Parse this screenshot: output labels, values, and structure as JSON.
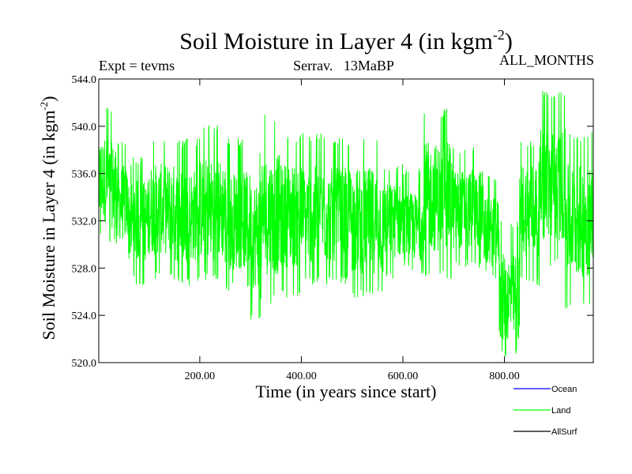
{
  "chart_data": {
    "type": "line",
    "title": "Soil Moisture in Layer 4 (in kgm",
    "title_sup": "-2",
    "title_close": ")",
    "subtitle_left": "Expt = tevms",
    "subtitle_center": "Serrav.   13MaBP",
    "subtitle_right": "ALL_MONTHS",
    "ylabel": "Soil Moisture in Layer 4 (in kgm",
    "ylabel_sup": "-2",
    "ylabel_close": ")",
    "xlabel": "Time (in years since start)",
    "xlim": [
      1,
      975
    ],
    "ylim": [
      520.0,
      544.0
    ],
    "x_ticks": [
      200,
      400,
      600,
      800
    ],
    "x_tick_labels": [
      "200.00",
      "400.00",
      "600.00",
      "800.00"
    ],
    "y_ticks": [
      520,
      524,
      528,
      532,
      536,
      540,
      544
    ],
    "y_tick_labels": [
      "520.0",
      "524.0",
      "528.0",
      "532.0",
      "536.0",
      "540.0",
      "544.0"
    ],
    "series": [
      {
        "name": "Ocean",
        "color": "#0000ff",
        "values": []
      },
      {
        "name": "Land",
        "color": "#00ff00",
        "segments": [
          {
            "x": [
              0,
              20
            ],
            "low": 530.5,
            "high": 542.0,
            "mean": 535.5
          },
          {
            "x": [
              20,
              40
            ],
            "low": 530.0,
            "high": 541.5,
            "mean": 535.0
          },
          {
            "x": [
              40,
              60
            ],
            "low": 529.0,
            "high": 539.0,
            "mean": 533.5
          },
          {
            "x": [
              60,
              100
            ],
            "low": 526.5,
            "high": 537.5,
            "mean": 532.0
          },
          {
            "x": [
              100,
              150
            ],
            "low": 527.0,
            "high": 539.0,
            "mean": 533.0
          },
          {
            "x": [
              150,
              200
            ],
            "low": 526.5,
            "high": 539.0,
            "mean": 532.5
          },
          {
            "x": [
              200,
              250
            ],
            "low": 527.0,
            "high": 540.5,
            "mean": 533.0
          },
          {
            "x": [
              250,
              300
            ],
            "low": 526.0,
            "high": 539.0,
            "mean": 532.0
          },
          {
            "x": [
              300,
              320
            ],
            "low": 523.5,
            "high": 538.0,
            "mean": 531.0
          },
          {
            "x": [
              320,
              360
            ],
            "low": 525.0,
            "high": 541.0,
            "mean": 532.5
          },
          {
            "x": [
              360,
              400
            ],
            "low": 525.5,
            "high": 539.5,
            "mean": 532.5
          },
          {
            "x": [
              400,
              450
            ],
            "low": 526.5,
            "high": 539.5,
            "mean": 532.5
          },
          {
            "x": [
              450,
              500
            ],
            "low": 526.5,
            "high": 539.0,
            "mean": 532.5
          },
          {
            "x": [
              500,
              560
            ],
            "low": 525.5,
            "high": 539.5,
            "mean": 532.0
          },
          {
            "x": [
              560,
              600
            ],
            "low": 527.0,
            "high": 537.0,
            "mean": 532.0
          },
          {
            "x": [
              600,
              640
            ],
            "low": 527.5,
            "high": 536.5,
            "mean": 531.5
          },
          {
            "x": [
              640,
              700
            ],
            "low": 527.0,
            "high": 541.5,
            "mean": 534.0
          },
          {
            "x": [
              700,
              760
            ],
            "low": 528.0,
            "high": 538.5,
            "mean": 533.0
          },
          {
            "x": [
              760,
              790
            ],
            "low": 527.0,
            "high": 536.0,
            "mean": 531.0
          },
          {
            "x": [
              790,
              830
            ],
            "low": 520.3,
            "high": 532.0,
            "mean": 525.5
          },
          {
            "x": [
              830,
              870
            ],
            "low": 526.5,
            "high": 539.0,
            "mean": 533.0
          },
          {
            "x": [
              870,
              920
            ],
            "low": 528.0,
            "high": 543.0,
            "mean": 535.0
          },
          {
            "x": [
              920,
              975
            ],
            "low": 524.5,
            "high": 539.5,
            "mean": 532.0
          }
        ]
      },
      {
        "name": "AllSurf",
        "color": "#000000",
        "values": []
      }
    ],
    "legend_placement": "bottom-right",
    "grid": false
  }
}
